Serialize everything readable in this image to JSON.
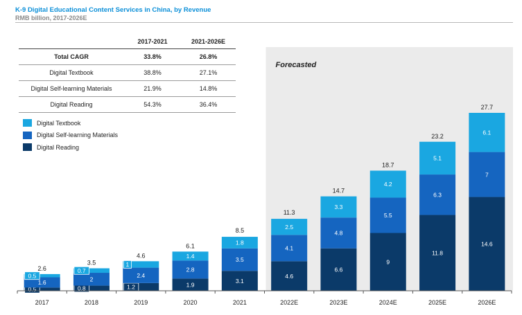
{
  "header": {
    "title": "K-9 Digital Educational Content Services in China, by Revenue",
    "subtitle": "RMB billion, 2017-2026E"
  },
  "cagr_table": {
    "columns": [
      "",
      "2017-2021",
      "2021-2026E"
    ],
    "rows": [
      {
        "label": "Total CAGR",
        "v1": "33.8%",
        "v2": "26.8%"
      },
      {
        "label": "Digital Textbook",
        "v1": "38.8%",
        "v2": "27.1%"
      },
      {
        "label": "Digital Self-learning Materials",
        "v1": "21.9%",
        "v2": "14.8%"
      },
      {
        "label": "Digital Reading",
        "v1": "54.3%",
        "v2": "36.4%"
      }
    ]
  },
  "colors": {
    "digital_reading": "#0b3a69",
    "self_learning": "#1565c0",
    "textbook": "#1aa7e1",
    "forecast_bg": "#ebebeb",
    "total_label": "#222222",
    "segment_label": "#ffffff"
  },
  "chart_data": {
    "type": "bar",
    "stacked": true,
    "title": "K-9 Digital Educational Content Services in China, by Revenue",
    "subtitle": "RMB billion, 2017-2026E",
    "categories": [
      "2017",
      "2018",
      "2019",
      "2020",
      "2021",
      "2022E",
      "2023E",
      "2024E",
      "2025E",
      "2026E"
    ],
    "series": [
      {
        "name": "Digital Reading",
        "values": [
          0.5,
          0.8,
          1.2,
          1.9,
          3.1,
          4.6,
          6.6,
          9.0,
          11.8,
          14.6
        ]
      },
      {
        "name": "Digital Self-learning Materials",
        "values": [
          1.6,
          2.0,
          2.4,
          2.8,
          3.5,
          4.1,
          4.8,
          5.5,
          6.3,
          7.0
        ]
      },
      {
        "name": "Digital Textbook",
        "values": [
          0.5,
          0.7,
          1.0,
          1.4,
          1.8,
          2.5,
          3.3,
          4.2,
          5.1,
          6.1
        ]
      }
    ],
    "totals": [
      2.6,
      3.5,
      4.6,
      6.1,
      8.5,
      11.3,
      14.7,
      18.7,
      23.2,
      27.7
    ],
    "legend": {
      "position": "top-left",
      "entries": [
        "Digital Textbook",
        "Digital Self-learning Materials",
        "Digital Reading"
      ]
    },
    "forecast": {
      "label": "Forecasted",
      "from_category": "2022E"
    },
    "ylim": [
      0,
      27.7
    ],
    "grid": false
  }
}
